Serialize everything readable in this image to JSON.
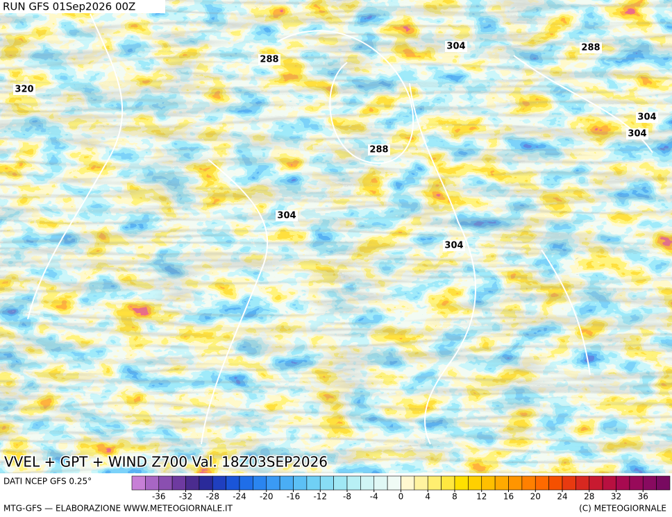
{
  "header": {
    "run": "RUN GFS 01Sep2026 00Z"
  },
  "map": {
    "title": "VVEL + GPT + WIND Z700 Val. 18Z03SEP2026",
    "contour_labels": [
      "288",
      "304",
      "288",
      "320",
      "304",
      "304",
      "288",
      "304",
      "304"
    ]
  },
  "colorbar": {
    "source": "DATI NCEP GFS 0.25°",
    "lim": [
      -40,
      40
    ],
    "ticks": [
      -36,
      -32,
      -28,
      -24,
      -20,
      -16,
      -12,
      -8,
      -4,
      0,
      4,
      8,
      12,
      16,
      20,
      24,
      28,
      32,
      36
    ],
    "colors": [
      "#c77fd6",
      "#a866c4",
      "#8a4fb0",
      "#6e3aa0",
      "#4b2c8f",
      "#2a2a9a",
      "#1f3fbf",
      "#1a55d8",
      "#1f6ee8",
      "#2a85f0",
      "#3a9af5",
      "#4aaef5",
      "#5cc0f5",
      "#70d0f5",
      "#88ddf5",
      "#a0e8f5",
      "#b8f0f5",
      "#d0f5f5",
      "#e0f8f5",
      "#f0fbf5",
      "#fff8d0",
      "#fff3a0",
      "#ffee70",
      "#ffe840",
      "#ffe000",
      "#ffd000",
      "#ffbf00",
      "#ffaa00",
      "#ff9500",
      "#ff8000",
      "#ff6a00",
      "#f55000",
      "#e83a10",
      "#d82820",
      "#c81a30",
      "#b81040",
      "#a80a50",
      "#980a5a",
      "#880a60",
      "#780a60"
    ]
  },
  "footer": {
    "left": "MTG-GFS — ELABORAZIONE WWW.METEOGIORNALE.IT",
    "right": "(C) METEOGIORNALE"
  }
}
